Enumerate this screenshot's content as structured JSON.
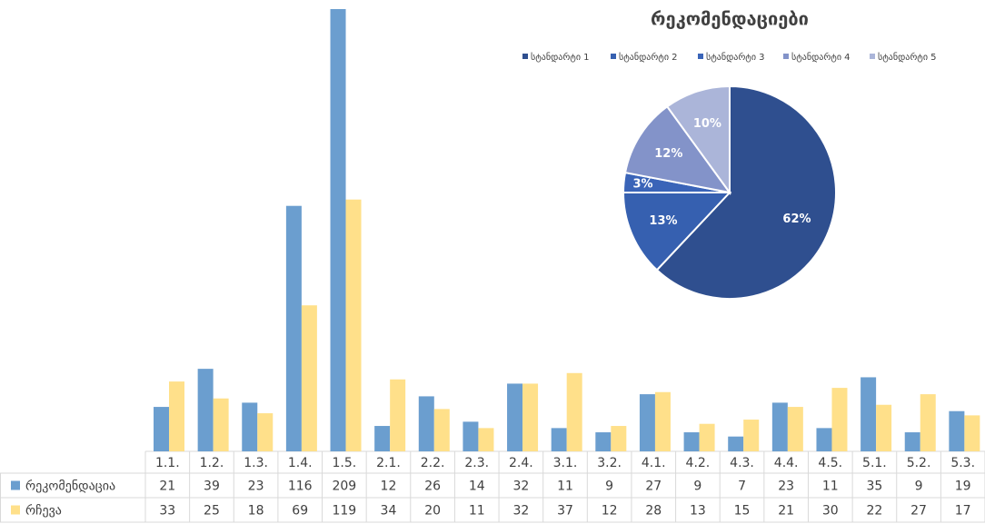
{
  "chart_data": [
    {
      "type": "bar",
      "categories": [
        "1.1.",
        "1.2.",
        "1.3.",
        "1.4.",
        "1.5.",
        "2.1.",
        "2.2.",
        "2.3.",
        "2.4.",
        "3.1.",
        "3.2.",
        "4.1.",
        "4.2.",
        "4.3.",
        "4.4.",
        "4.5.",
        "5.1.",
        "5.2.",
        "5.3."
      ],
      "series": [
        {
          "name": "რეკომენდაცია",
          "color": "#6b9ecf",
          "values": [
            21,
            39,
            23,
            116,
            209,
            12,
            26,
            14,
            32,
            11,
            9,
            27,
            9,
            7,
            23,
            11,
            35,
            9,
            19
          ]
        },
        {
          "name": "რჩევა",
          "color": "#ffe08a",
          "values": [
            33,
            25,
            18,
            69,
            119,
            34,
            20,
            11,
            32,
            37,
            12,
            28,
            13,
            15,
            21,
            30,
            22,
            27,
            17
          ]
        }
      ]
    },
    {
      "type": "pie",
      "title": "რეკომენდაციები",
      "categories": [
        "სტანდარტი 1",
        "სტანდარტი 2",
        "სტანდარტი 3",
        "სტანდარტი 4",
        "სტანდარტი 5"
      ],
      "values": [
        62,
        13,
        3,
        12,
        10
      ],
      "value_labels": [
        "62%",
        "13%",
        "3%",
        "12%",
        "10%"
      ],
      "colors": [
        "#2f4f8f",
        "#3660b0",
        "#3a64b8",
        "#8393c9",
        "#abb5d9"
      ],
      "legend": "top"
    }
  ]
}
